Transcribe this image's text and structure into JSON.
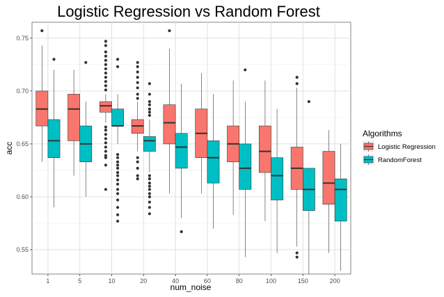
{
  "chart_data": {
    "type": "boxplot",
    "title": "Logistic Regression vs Random Forest",
    "xlabel": "num_noise",
    "ylabel": "acc",
    "categories": [
      "1",
      "5",
      "10",
      "20",
      "40",
      "60",
      "80",
      "100",
      "150",
      "200"
    ],
    "ylim": [
      0.527,
      0.765
    ],
    "yticks": [
      0.55,
      0.6,
      0.65,
      0.7,
      0.75
    ],
    "ytick_labels": [
      "0.55",
      "0.60",
      "0.65",
      "0.70",
      "0.75"
    ],
    "legend_title": "Algorithms",
    "legend_position": "right",
    "series": [
      {
        "name": "Logistic Regression",
        "color": "#F8766D",
        "boxes": [
          {
            "whisker_low": 0.633,
            "q1": 0.667,
            "median": 0.683,
            "q3": 0.7,
            "whisker_high": 0.743,
            "outliers": [
              0.757
            ]
          },
          {
            "whisker_low": 0.62,
            "q1": 0.653,
            "median": 0.683,
            "q3": 0.697,
            "whisker_high": 0.72,
            "outliers": []
          },
          {
            "whisker_low": 0.67,
            "q1": 0.68,
            "median": 0.686,
            "q3": 0.69,
            "whisker_high": 0.697,
            "outliers": [
              0.747,
              0.743,
              0.737,
              0.733,
              0.729,
              0.725,
              0.721,
              0.717,
              0.713,
              0.709,
              0.705,
              0.701,
              0.666,
              0.663,
              0.659,
              0.655,
              0.651,
              0.647,
              0.643,
              0.639,
              0.637,
              0.63,
              0.607
            ]
          },
          {
            "whisker_low": 0.643,
            "q1": 0.66,
            "median": 0.667,
            "q3": 0.673,
            "whisker_high": 0.69,
            "outliers": [
              0.727,
              0.723,
              0.718,
              0.713,
              0.708,
              0.703,
              0.697,
              0.693,
              0.637,
              0.633,
              0.627,
              0.62,
              0.617
            ]
          },
          {
            "whisker_low": 0.603,
            "q1": 0.65,
            "median": 0.67,
            "q3": 0.687,
            "whisker_high": 0.74,
            "outliers": [
              0.757
            ]
          },
          {
            "whisker_low": 0.603,
            "q1": 0.637,
            "median": 0.66,
            "q3": 0.683,
            "whisker_high": 0.717,
            "outliers": []
          },
          {
            "whisker_low": 0.583,
            "q1": 0.633,
            "median": 0.65,
            "q3": 0.667,
            "whisker_high": 0.71,
            "outliers": []
          },
          {
            "whisker_low": 0.577,
            "q1": 0.623,
            "median": 0.643,
            "q3": 0.667,
            "whisker_high": 0.71,
            "outliers": []
          },
          {
            "whisker_low": 0.553,
            "q1": 0.607,
            "median": 0.627,
            "q3": 0.647,
            "whisker_high": 0.703,
            "outliers": [
              0.713,
              0.707,
              0.547,
              0.543
            ]
          },
          {
            "whisker_low": 0.547,
            "q1": 0.593,
            "median": 0.613,
            "q3": 0.643,
            "whisker_high": 0.663,
            "outliers": []
          }
        ]
      },
      {
        "name": "RandomForest",
        "color": "#00BFC4",
        "boxes": [
          {
            "whisker_low": 0.59,
            "q1": 0.637,
            "median": 0.653,
            "q3": 0.673,
            "whisker_high": 0.72,
            "outliers": [
              0.73
            ]
          },
          {
            "whisker_low": 0.6,
            "q1": 0.633,
            "median": 0.65,
            "q3": 0.667,
            "whisker_high": 0.69,
            "outliers": [
              0.727
            ]
          },
          {
            "whisker_low": 0.65,
            "q1": 0.667,
            "median": 0.667,
            "q3": 0.683,
            "whisker_high": 0.697,
            "outliers": [
              0.73,
              0.723,
              0.64,
              0.637,
              0.633,
              0.63,
              0.627,
              0.623,
              0.62,
              0.616,
              0.612,
              0.607,
              0.603,
              0.597,
              0.59,
              0.583,
              0.577
            ]
          },
          {
            "whisker_low": 0.623,
            "q1": 0.643,
            "median": 0.653,
            "q3": 0.657,
            "whisker_high": 0.673,
            "outliers": [
              0.707,
              0.697,
              0.69,
              0.687,
              0.683,
              0.68,
              0.677,
              0.62,
              0.617,
              0.613,
              0.61,
              0.607,
              0.603,
              0.6,
              0.595,
              0.59,
              0.584
            ]
          },
          {
            "whisker_low": 0.58,
            "q1": 0.627,
            "median": 0.647,
            "q3": 0.66,
            "whisker_high": 0.707,
            "outliers": [
              0.567
            ]
          },
          {
            "whisker_low": 0.57,
            "q1": 0.613,
            "median": 0.637,
            "q3": 0.653,
            "whisker_high": 0.697,
            "outliers": []
          },
          {
            "whisker_low": 0.543,
            "q1": 0.607,
            "median": 0.627,
            "q3": 0.65,
            "whisker_high": 0.69,
            "outliers": [
              0.72
            ]
          },
          {
            "whisker_low": 0.547,
            "q1": 0.597,
            "median": 0.62,
            "q3": 0.637,
            "whisker_high": 0.683,
            "outliers": []
          },
          {
            "whisker_low": 0.527,
            "q1": 0.587,
            "median": 0.607,
            "q3": 0.627,
            "whisker_high": 0.627,
            "outliers": [
              0.69
            ]
          },
          {
            "whisker_low": 0.53,
            "q1": 0.577,
            "median": 0.607,
            "q3": 0.617,
            "whisker_high": 0.65,
            "outliers": []
          }
        ]
      }
    ]
  }
}
